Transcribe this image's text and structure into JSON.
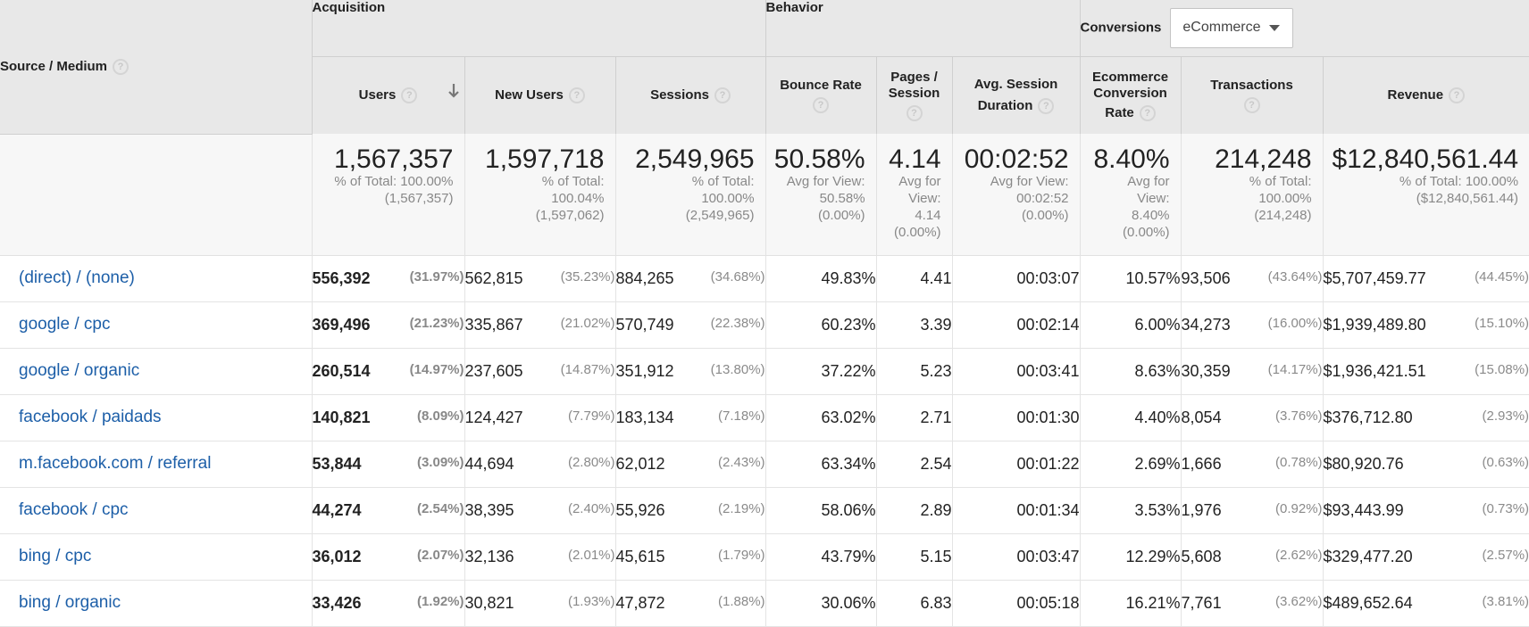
{
  "header": {
    "dimension": "Source / Medium",
    "groups": {
      "acquisition": "Acquisition",
      "behavior": "Behavior",
      "conversions": "Conversions"
    },
    "conversion_select": "eCommerce",
    "columns": {
      "users": "Users",
      "new_users": "New Users",
      "sessions": "Sessions",
      "bounce_rate": "Bounce Rate",
      "pages_l1": "Pages /",
      "pages_l2": "Session",
      "duration_l1": "Avg. Session",
      "duration_l2": "Duration",
      "ecom_l1": "Ecommerce",
      "ecom_l2": "Conversion",
      "ecom_l3": "Rate",
      "transactions": "Transactions",
      "revenue": "Revenue"
    },
    "help_symbol": "?"
  },
  "totals": {
    "users": {
      "value": "1,567,357",
      "l1": "% of Total: 100.00%",
      "l2": "(1,567,357)"
    },
    "new_users": {
      "value": "1,597,718",
      "l1": "% of Total:",
      "l2": "100.04%",
      "l3": "(1,597,062)"
    },
    "sessions": {
      "value": "2,549,965",
      "l1": "% of Total:",
      "l2": "100.00%",
      "l3": "(2,549,965)"
    },
    "bounce_rate": {
      "value": "50.58%",
      "l1": "Avg for View:",
      "l2": "50.58%",
      "l3": "(0.00%)"
    },
    "pages": {
      "value": "4.14",
      "l1": "Avg for",
      "l2": "View:",
      "l3": "4.14",
      "l4": "(0.00%)"
    },
    "duration": {
      "value": "00:02:52",
      "l1": "Avg for View:",
      "l2": "00:02:52",
      "l3": "(0.00%)"
    },
    "ecom": {
      "value": "8.40%",
      "l1": "Avg for",
      "l2": "View:",
      "l3": "8.40%",
      "l4": "(0.00%)"
    },
    "transactions": {
      "value": "214,248",
      "l1": "% of Total:",
      "l2": "100.00%",
      "l3": "(214,248)"
    },
    "revenue": {
      "value": "$12,840,561.44",
      "l1": "% of Total: 100.00%",
      "l2": "($12,840,561.44)"
    }
  },
  "rows": [
    {
      "source": "(direct) / (none)",
      "users": "556,392",
      "users_pct": "(31.97%)",
      "new_users": "562,815",
      "new_users_pct": "(35.23%)",
      "sessions": "884,265",
      "sessions_pct": "(34.68%)",
      "bounce_rate": "49.83%",
      "pages": "4.41",
      "duration": "00:03:07",
      "ecom": "10.57%",
      "transactions": "93,506",
      "transactions_pct": "(43.64%)",
      "revenue": "$5,707,459.77",
      "revenue_pct": "(44.45%)"
    },
    {
      "source": "google / cpc",
      "users": "369,496",
      "users_pct": "(21.23%)",
      "new_users": "335,867",
      "new_users_pct": "(21.02%)",
      "sessions": "570,749",
      "sessions_pct": "(22.38%)",
      "bounce_rate": "60.23%",
      "pages": "3.39",
      "duration": "00:02:14",
      "ecom": "6.00%",
      "transactions": "34,273",
      "transactions_pct": "(16.00%)",
      "revenue": "$1,939,489.80",
      "revenue_pct": "(15.10%)"
    },
    {
      "source": "google / organic",
      "users": "260,514",
      "users_pct": "(14.97%)",
      "new_users": "237,605",
      "new_users_pct": "(14.87%)",
      "sessions": "351,912",
      "sessions_pct": "(13.80%)",
      "bounce_rate": "37.22%",
      "pages": "5.23",
      "duration": "00:03:41",
      "ecom": "8.63%",
      "transactions": "30,359",
      "transactions_pct": "(14.17%)",
      "revenue": "$1,936,421.51",
      "revenue_pct": "(15.08%)"
    },
    {
      "source": "facebook / paidads",
      "users": "140,821",
      "users_pct": "(8.09%)",
      "new_users": "124,427",
      "new_users_pct": "(7.79%)",
      "sessions": "183,134",
      "sessions_pct": "(7.18%)",
      "bounce_rate": "63.02%",
      "pages": "2.71",
      "duration": "00:01:30",
      "ecom": "4.40%",
      "transactions": "8,054",
      "transactions_pct": "(3.76%)",
      "revenue": "$376,712.80",
      "revenue_pct": "(2.93%)"
    },
    {
      "source": "m.facebook.com / referral",
      "users": "53,844",
      "users_pct": "(3.09%)",
      "new_users": "44,694",
      "new_users_pct": "(2.80%)",
      "sessions": "62,012",
      "sessions_pct": "(2.43%)",
      "bounce_rate": "63.34%",
      "pages": "2.54",
      "duration": "00:01:22",
      "ecom": "2.69%",
      "transactions": "1,666",
      "transactions_pct": "(0.78%)",
      "revenue": "$80,920.76",
      "revenue_pct": "(0.63%)"
    },
    {
      "source": "facebook / cpc",
      "users": "44,274",
      "users_pct": "(2.54%)",
      "new_users": "38,395",
      "new_users_pct": "(2.40%)",
      "sessions": "55,926",
      "sessions_pct": "(2.19%)",
      "bounce_rate": "58.06%",
      "pages": "2.89",
      "duration": "00:01:34",
      "ecom": "3.53%",
      "transactions": "1,976",
      "transactions_pct": "(0.92%)",
      "revenue": "$93,443.99",
      "revenue_pct": "(0.73%)"
    },
    {
      "source": "bing / cpc",
      "users": "36,012",
      "users_pct": "(2.07%)",
      "new_users": "32,136",
      "new_users_pct": "(2.01%)",
      "sessions": "45,615",
      "sessions_pct": "(1.79%)",
      "bounce_rate": "43.79%",
      "pages": "5.15",
      "duration": "00:03:47",
      "ecom": "12.29%",
      "transactions": "5,608",
      "transactions_pct": "(2.62%)",
      "revenue": "$329,477.20",
      "revenue_pct": "(2.57%)"
    },
    {
      "source": "bing / organic",
      "users": "33,426",
      "users_pct": "(1.92%)",
      "new_users": "30,821",
      "new_users_pct": "(1.93%)",
      "sessions": "47,872",
      "sessions_pct": "(1.88%)",
      "bounce_rate": "30.06%",
      "pages": "6.83",
      "duration": "00:05:18",
      "ecom": "16.21%",
      "transactions": "7,761",
      "transactions_pct": "(3.62%)",
      "revenue": "$489,652.64",
      "revenue_pct": "(3.81%)"
    }
  ]
}
